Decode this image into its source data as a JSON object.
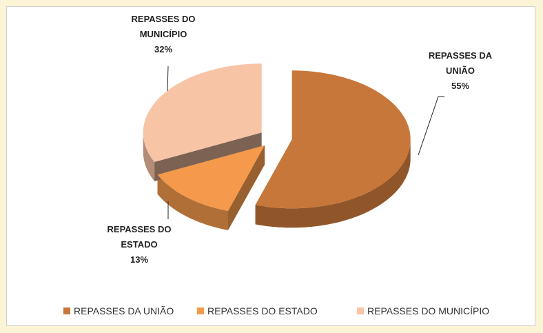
{
  "chart_data": {
    "type": "pie",
    "categories": [
      "REPASSES DA UNIÃO",
      "REPASSES DO ESTADO",
      "REPASSES DO MUNICÍPIO"
    ],
    "values": [
      55,
      13,
      32
    ],
    "value_labels": [
      "55%",
      "13%",
      "32%"
    ],
    "colors": [
      "#c8773a",
      "#f59a4c",
      "#f8c4a6"
    ],
    "legend": "bottom"
  }
}
